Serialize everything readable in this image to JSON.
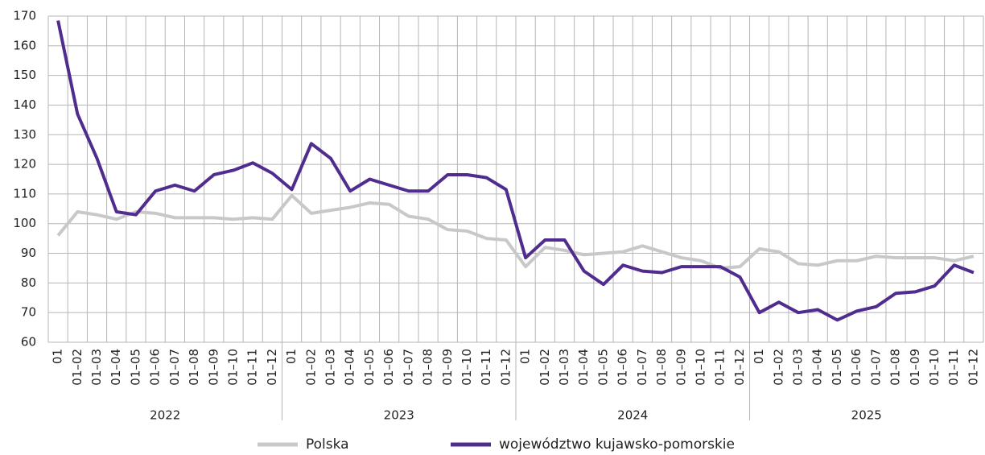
{
  "chart_data": {
    "type": "line",
    "categories": [
      "01",
      "01–02",
      "01–03",
      "01–04",
      "01–05",
      "01–06",
      "01–07",
      "01–08",
      "01–09",
      "01–10",
      "01–11",
      "01–12",
      "01",
      "01–02",
      "01–03",
      "01–04",
      "01–05",
      "01–06",
      "01–07",
      "01–08",
      "01–09",
      "01–10",
      "01–11",
      "01–12",
      "01",
      "01–02",
      "01–03",
      "01–04",
      "01–05",
      "01–06",
      "01–07",
      "01–08",
      "01–09",
      "01–10",
      "01–11",
      "01–12",
      "01",
      "01–02",
      "01–03",
      "01–04",
      "01–05",
      "01–06",
      "01–07",
      "01–08",
      "01–09",
      "01–10",
      "01–11",
      "01–12"
    ],
    "x_groups": [
      "2022",
      "2023",
      "2024",
      "2025"
    ],
    "series": [
      {
        "name": "Polska",
        "color": "#c8c8c8",
        "values": [
          96,
          104,
          103,
          101.5,
          104,
          103.5,
          102,
          102,
          102,
          101.5,
          102,
          101.5,
          109.5,
          103.5,
          104.5,
          105.5,
          107,
          106.5,
          102.5,
          101.5,
          98,
          97.5,
          95,
          94.5,
          85.5,
          92,
          91,
          89.5,
          90,
          90.5,
          92.5,
          90.5,
          88.5,
          87.5,
          85,
          85.5,
          91.5,
          90.5,
          86.5,
          86,
          87.5,
          87.5,
          89,
          88.5,
          88.5,
          88.5,
          87.5,
          89
        ]
      },
      {
        "name": "województwo kujawsko-pomorskie",
        "color": "#4f2c8e",
        "values": [
          168.5,
          137,
          122,
          104,
          103,
          111,
          113,
          111,
          116.5,
          118,
          120.5,
          117,
          111.5,
          127,
          122,
          111,
          115,
          113,
          111,
          111,
          116.5,
          116.5,
          115.5,
          111.5,
          88.5,
          94.5,
          94.5,
          84,
          79.5,
          86,
          84,
          83.5,
          85.5,
          85.5,
          85.5,
          82,
          70,
          73.5,
          70,
          71,
          67.5,
          70.5,
          72,
          76.5,
          77,
          79,
          86,
          83.5
        ]
      }
    ],
    "ylim": [
      60,
      170
    ],
    "yticks": [
      60,
      70,
      80,
      90,
      100,
      110,
      120,
      130,
      140,
      150,
      160,
      170
    ],
    "grid": true
  }
}
